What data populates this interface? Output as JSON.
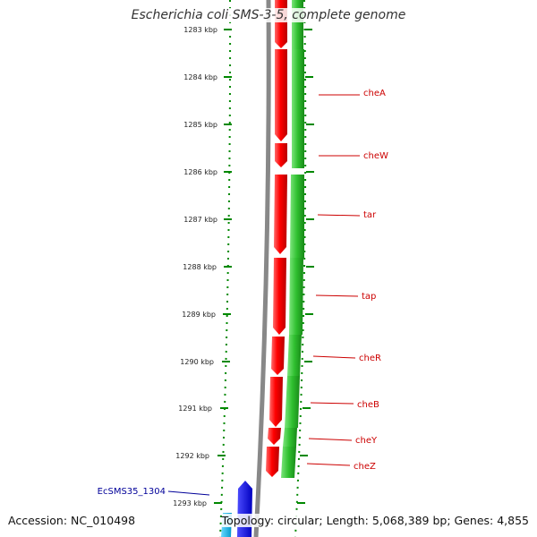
{
  "title": "Escherichia coli SMS-3-5, complete genome",
  "footer": {
    "accession": "Accession: NC_010498",
    "summary": "Topology: circular; Length: 5,068,389 bp; Genes: 4,855"
  },
  "ruler": {
    "labels": [
      "1283 kbp",
      "1284 kbp",
      "1285 kbp",
      "1286 kbp",
      "1287 kbp",
      "1288 kbp",
      "1289 kbp",
      "1290 kbp",
      "1291 kbp",
      "1292 kbp",
      "1293 kbp"
    ]
  },
  "genes": [
    {
      "name": "cheA",
      "color": "#ff0000"
    },
    {
      "name": "cheW",
      "color": "#ff0000"
    },
    {
      "name": "tar",
      "color": "#ff0000"
    },
    {
      "name": "tap",
      "color": "#ff0000"
    },
    {
      "name": "cheR",
      "color": "#ff0000"
    },
    {
      "name": "cheB",
      "color": "#ff0000"
    },
    {
      "name": "cheY",
      "color": "#ff0000"
    },
    {
      "name": "cheZ",
      "color": "#ff0000"
    }
  ],
  "extra_gene": {
    "name": "EcSMS35_1304",
    "color": "#0000ff"
  },
  "colors": {
    "forward_genes": "#ff0000",
    "feature_track": "#33cc33",
    "other_gene": "#0000ff",
    "cyan_feature": "#00bfff",
    "backbone": "#888888",
    "ticks": "#008800"
  }
}
